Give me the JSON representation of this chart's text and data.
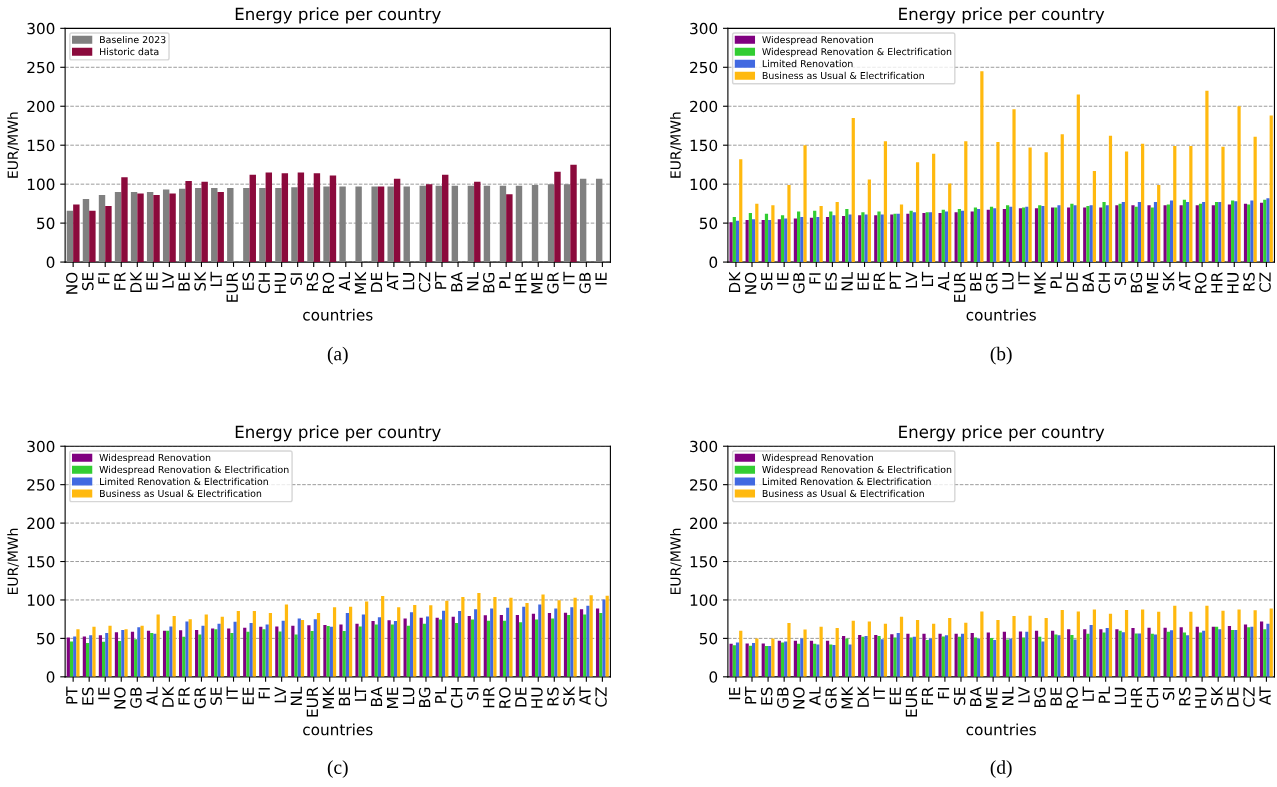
{
  "chart_data": [
    {
      "type": "bar",
      "title": "Energy price per country",
      "xlabel": "countries",
      "ylabel": "EUR/MWh",
      "ylim": [
        0,
        300
      ],
      "yticks": [
        0,
        50,
        100,
        150,
        200,
        250,
        300
      ],
      "grid": "y",
      "legend": "top left",
      "annotations": [
        "(a)"
      ],
      "categories": [
        "NO",
        "SE",
        "FI",
        "FR",
        "DK",
        "EE",
        "LV",
        "BE",
        "SK",
        "LT",
        "EUR",
        "ES",
        "CH",
        "HU",
        "SI",
        "RS",
        "RO",
        "AL",
        "MK",
        "DE",
        "AT",
        "LU",
        "CZ",
        "PT",
        "BA",
        "NL",
        "BG",
        "PL",
        "HR",
        "ME",
        "GR",
        "IT",
        "GB",
        "IE"
      ],
      "series": [
        {
          "name": "Baseline 2023",
          "color": "#808080",
          "values": [
            66,
            81,
            86,
            90,
            90,
            90,
            93,
            94,
            95,
            95,
            95,
            95,
            95,
            95,
            96,
            96,
            97,
            97,
            97,
            97,
            97,
            97,
            98,
            98,
            98,
            98,
            98,
            98,
            98,
            99,
            100,
            100,
            107,
            107
          ]
        },
        {
          "name": "Historic data",
          "color": "#8b0a3c",
          "values": [
            74,
            66,
            72,
            109,
            88,
            86,
            88,
            104,
            103,
            90,
            null,
            112,
            115,
            114,
            115,
            114,
            111,
            null,
            null,
            97,
            107,
            null,
            100,
            112,
            null,
            103,
            null,
            87,
            null,
            null,
            116,
            125,
            null,
            null
          ]
        }
      ]
    },
    {
      "type": "bar",
      "title": "Energy price per country",
      "xlabel": "countries",
      "ylabel": "EUR/MWh",
      "ylim": [
        0,
        300
      ],
      "yticks": [
        0,
        50,
        100,
        150,
        200,
        250,
        300
      ],
      "grid": "y",
      "legend": "top left",
      "annotations": [
        "(b)"
      ],
      "categories": [
        "DK",
        "NO",
        "SE",
        "IE",
        "GB",
        "FI",
        "ES",
        "NL",
        "EE",
        "FR",
        "PT",
        "LV",
        "LT",
        "AL",
        "EUR",
        "BE",
        "GR",
        "LU",
        "IT",
        "MK",
        "PL",
        "DE",
        "BA",
        "CH",
        "SI",
        "BG",
        "ME",
        "SK",
        "AT",
        "RO",
        "HR",
        "HU",
        "RS",
        "CZ"
      ],
      "series": [
        {
          "name": "Widespread Renovation",
          "color": "#800080",
          "values": [
            51,
            54,
            54,
            55,
            56,
            57,
            58,
            59,
            60,
            60,
            61,
            62,
            63,
            63,
            64,
            65,
            67,
            68,
            69,
            69,
            70,
            70,
            70,
            70,
            73,
            73,
            73,
            73,
            73,
            73,
            73,
            74,
            75,
            76
          ]
        },
        {
          "name": "Widespread Renovation & Electrification",
          "color": "#32cd32",
          "values": [
            58,
            63,
            62,
            60,
            65,
            66,
            65,
            68,
            64,
            65,
            62,
            66,
            64,
            67,
            68,
            70,
            71,
            73,
            70,
            73,
            70,
            75,
            72,
            77,
            75,
            71,
            70,
            74,
            80,
            75,
            77,
            79,
            74,
            80
          ]
        },
        {
          "name": "Limited Renovation",
          "color": "#4169e1",
          "values": [
            53,
            55,
            54,
            56,
            58,
            58,
            60,
            61,
            61,
            61,
            62,
            64,
            64,
            65,
            66,
            68,
            69,
            71,
            71,
            72,
            73,
            73,
            73,
            73,
            77,
            77,
            77,
            79,
            77,
            77,
            77,
            78,
            79,
            82
          ]
        },
        {
          "name": "Business as Usual & Electrification",
          "color": "#ffb90f",
          "values": [
            132,
            75,
            73,
            99,
            150,
            72,
            77,
            185,
            106,
            155,
            74,
            128,
            139,
            101,
            155,
            245,
            154,
            196,
            147,
            141,
            164,
            215,
            117,
            162,
            142,
            152,
            99,
            149,
            149,
            220,
            148,
            200,
            161,
            188
          ]
        }
      ]
    },
    {
      "type": "bar",
      "title": "Energy price per country",
      "xlabel": "countries",
      "ylabel": "EUR/MWh",
      "ylim": [
        0,
        300
      ],
      "yticks": [
        0,
        50,
        100,
        150,
        200,
        250,
        300
      ],
      "grid": "y",
      "legend": "top left",
      "annotations": [
        "(c)"
      ],
      "categories": [
        "PT",
        "ES",
        "IE",
        "NO",
        "GB",
        "AL",
        "DK",
        "FR",
        "GR",
        "SE",
        "IT",
        "EE",
        "FI",
        "LV",
        "NL",
        "EUR",
        "MK",
        "BE",
        "LT",
        "BA",
        "ME",
        "LU",
        "BG",
        "PL",
        "CH",
        "SI",
        "HR",
        "RO",
        "DE",
        "HU",
        "RS",
        "SK",
        "AT",
        "CZ"
      ],
      "series": [
        {
          "name": "Widespread Renovation",
          "color": "#800080",
          "values": [
            51,
            52.5,
            54,
            58,
            58.5,
            60,
            60,
            60.5,
            61,
            63,
            63,
            64,
            65,
            65.5,
            66.5,
            67,
            67.5,
            68,
            69,
            72.5,
            73.5,
            76,
            77,
            77,
            78,
            79,
            80,
            80.5,
            80.5,
            82,
            83,
            83.5,
            88,
            89
          ]
        },
        {
          "name": "Widespread Renovation & Electrification",
          "color": "#32cd32",
          "values": [
            46,
            44,
            45.5,
            46.5,
            49,
            57,
            60,
            52,
            55,
            62,
            57,
            58.5,
            62,
            59,
            55,
            59.5,
            66,
            59.5,
            65.5,
            68,
            68,
            66.5,
            69,
            74.5,
            70,
            74.5,
            73,
            73,
            71,
            74.5,
            76,
            80.5,
            81,
            83
          ]
        },
        {
          "name": "Limited Renovation & Electrification",
          "color": "#4169e1",
          "values": [
            52.5,
            54,
            57,
            61,
            64.5,
            56,
            65.5,
            72,
            66.5,
            69,
            71.5,
            70,
            68,
            73,
            76,
            75,
            65,
            83,
            81,
            77.5,
            72.5,
            84,
            78.5,
            86,
            85.5,
            88,
            89,
            90,
            91,
            94,
            89,
            90.5,
            92.5,
            100.5
          ]
        },
        {
          "name": "Business as Usual & Electrification",
          "color": "#ffb90f",
          "values": [
            62,
            65,
            66.5,
            62,
            66.5,
            81,
            79,
            75,
            81,
            78,
            85.5,
            85.5,
            83,
            94,
            74,
            83,
            90.5,
            91,
            98,
            105,
            90.5,
            93.5,
            93,
            99,
            104,
            109,
            104,
            103,
            96,
            107,
            99.5,
            103,
            106,
            105.5
          ]
        }
      ]
    },
    {
      "type": "bar",
      "title": "Energy price per country",
      "xlabel": "countries",
      "ylabel": "EUR/MWh",
      "ylim": [
        0,
        300
      ],
      "yticks": [
        0,
        50,
        100,
        150,
        200,
        250,
        300
      ],
      "grid": "y",
      "legend": "top left",
      "annotations": [
        "(d)"
      ],
      "categories": [
        "IE",
        "PT",
        "ES",
        "GB",
        "NO",
        "AL",
        "GR",
        "MK",
        "DK",
        "IT",
        "EE",
        "EUR",
        "FR",
        "FI",
        "SE",
        "BA",
        "ME",
        "NL",
        "LV",
        "BG",
        "BE",
        "RO",
        "LT",
        "PL",
        "LU",
        "HR",
        "CH",
        "SI",
        "RS",
        "HU",
        "SK",
        "DE",
        "CZ",
        "AT"
      ],
      "series": [
        {
          "name": "Widespread Renovation",
          "color": "#800080",
          "values": [
            43,
            43.5,
            43.5,
            47,
            47,
            47,
            47,
            53,
            54.5,
            54.5,
            55.5,
            56,
            56,
            56,
            56,
            57,
            57.5,
            58.5,
            59,
            60,
            60,
            62,
            62,
            62,
            62,
            63.5,
            64,
            64,
            64.5,
            65,
            65,
            66,
            68,
            72
          ]
        },
        {
          "name": "Widespread Renovation & Electrification",
          "color": "#32cd32",
          "values": [
            41,
            40.5,
            40,
            44.5,
            43,
            43,
            42,
            50,
            52,
            53,
            51,
            51,
            48,
            52.5,
            52,
            51,
            50.5,
            48.5,
            51,
            52,
            55,
            54.5,
            56,
            57.5,
            60,
            56.5,
            56,
            58.5,
            57.5,
            57.5,
            65,
            61,
            64.5,
            62
          ]
        },
        {
          "name": "Limited Renovation & Electrification",
          "color": "#4169e1",
          "values": [
            44.5,
            44,
            40,
            46,
            50,
            42,
            41.5,
            42,
            53,
            49,
            57,
            52,
            50,
            54,
            56,
            50,
            48,
            50,
            58.5,
            46,
            54,
            48.5,
            67.5,
            63.5,
            58,
            56.5,
            55,
            60.5,
            54,
            60,
            62,
            61,
            65,
            69
          ]
        },
        {
          "name": "Business as Usual & Electrification",
          "color": "#ffb90f",
          "values": [
            60,
            50,
            50,
            70,
            61.5,
            65,
            63.5,
            73,
            72,
            69,
            78,
            74,
            69,
            76.5,
            70.5,
            85,
            74,
            79,
            79.5,
            76.5,
            87,
            85,
            87.5,
            82,
            87,
            87.5,
            84.5,
            92.5,
            84.5,
            92.5,
            86,
            87.5,
            86.5,
            89
          ]
        }
      ]
    }
  ]
}
